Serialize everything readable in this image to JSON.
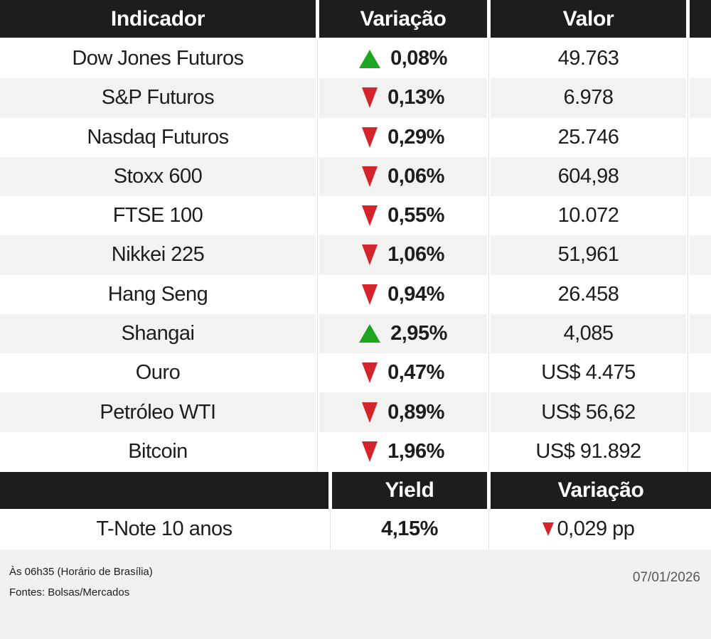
{
  "chart_data": {
    "type": "table",
    "sections": [
      {
        "columns": [
          "Indicador",
          "Variação",
          "Valor"
        ],
        "rows": [
          {
            "indicator": "Dow Jones Futuros",
            "direction": "up",
            "change": "0,08%",
            "value": "49.763"
          },
          {
            "indicator": "S&P Futuros",
            "direction": "down",
            "change": "0,13%",
            "value": "6.978"
          },
          {
            "indicator": "Nasdaq Futuros",
            "direction": "down",
            "change": "0,29%",
            "value": "25.746"
          },
          {
            "indicator": "Stoxx 600",
            "direction": "down",
            "change": "0,06%",
            "value": "604,98"
          },
          {
            "indicator": "FTSE 100",
            "direction": "down",
            "change": "0,55%",
            "value": "10.072"
          },
          {
            "indicator": "Nikkei 225",
            "direction": "down",
            "change": "1,06%",
            "value": "51,961"
          },
          {
            "indicator": "Hang Seng",
            "direction": "down",
            "change": "0,94%",
            "value": "26.458"
          },
          {
            "indicator": "Shangai",
            "direction": "up",
            "change": "2,95%",
            "value": "4,085"
          },
          {
            "indicator": "Ouro",
            "direction": "down",
            "change": "0,47%",
            "value": "US$ 4.475"
          },
          {
            "indicator": "Petróleo WTI",
            "direction": "down",
            "change": "0,89%",
            "value": "US$ 56,62"
          },
          {
            "indicator": "Bitcoin",
            "direction": "down",
            "change": "1,96%",
            "value": "US$ 91.892"
          }
        ]
      },
      {
        "columns": [
          "",
          "Yield",
          "Variação"
        ],
        "rows": [
          {
            "indicator": "T-Note 10 anos",
            "yield": "4,15%",
            "direction": "down",
            "change": "0,029 pp"
          }
        ]
      }
    ]
  },
  "footer": {
    "time_note": "Às 06h35 (Horário de Brasília)",
    "source_note": "Fontes: Bolsas/Mercados",
    "date": "07/01/2026"
  },
  "colors": {
    "header_bg": "#1D1D1B",
    "row_alt_bg": "#F2F2F0",
    "footer_bg": "#F1F1EF",
    "up_green": "#1FA41F",
    "down_red": "#D4242B",
    "text": "#1D1D1D",
    "date_gray": "#58585A"
  }
}
